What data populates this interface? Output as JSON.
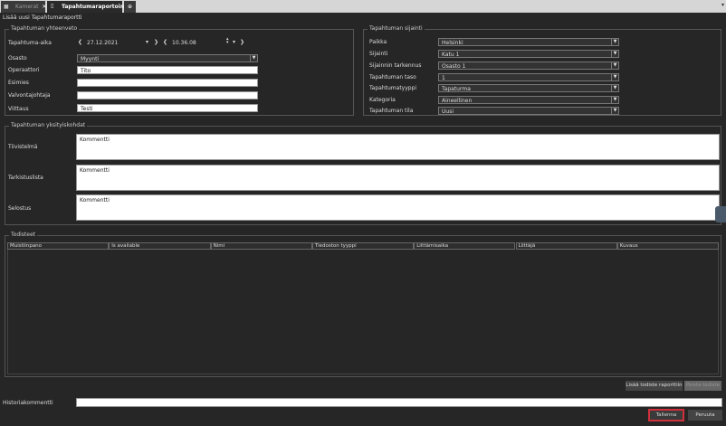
{
  "tabs": [
    {
      "label": "Kamerat",
      "icon": "camera-icon",
      "active": false
    },
    {
      "label": "Tapahtumaraportointi",
      "icon": "document-icon",
      "active": true
    }
  ],
  "page_title": "Lisää uusi Tapahtumaraportti",
  "summary": {
    "legend": "Tapahtuman yhteenveto",
    "time_label": "Tapahtuma-aika",
    "date": "27.12.2021",
    "time": "10.36.08",
    "department_label": "Osasto",
    "department": "Myynti",
    "fields": [
      {
        "label": "Operaattori",
        "value": "Tito"
      },
      {
        "label": "Esimies",
        "value": ""
      },
      {
        "label": "Valvontajohtaja",
        "value": ""
      },
      {
        "label": "Viittaus",
        "value": "Testi"
      }
    ]
  },
  "location": {
    "legend": "Tapahtuman sijainti",
    "fields": [
      {
        "label": "Paikka",
        "value": "Helsinki"
      },
      {
        "label": "Sijainti",
        "value": "Katu 1"
      },
      {
        "label": "Sijainnin tarkennus",
        "value": "Osasto 1"
      },
      {
        "label": "Tapahtuman taso",
        "value": "1"
      },
      {
        "label": "Tapahtumatyyppi",
        "value": "Tapaturma"
      },
      {
        "label": "Kategoria",
        "value": "Aineellinen"
      },
      {
        "label": "Tapahtuman tila",
        "value": "Uusi"
      }
    ]
  },
  "details": {
    "legend": "Tapahtuman yksityiskohdat",
    "fields": [
      {
        "label": "Tiivistelmä",
        "value": "Kommentti"
      },
      {
        "label": "Tarkistuslista",
        "value": "Kommentti"
      },
      {
        "label": "Selostus",
        "value": "Kommentti"
      }
    ]
  },
  "evidence": {
    "legend": "Todisteet",
    "columns": [
      "Muistiinpano",
      "Is available",
      "Nimi",
      "Tiedoston tyyppi",
      "Liittämisaika",
      "Liittäjä",
      "Kuvaus"
    ],
    "add_button": "Lisää todiste raporttiin",
    "remove_button": "Poista todiste"
  },
  "history": {
    "label": "Historiakommentti",
    "value": ""
  },
  "save_button": "Tallenna",
  "cancel_button": "Peruuta",
  "colors": {
    "save_highlight": "#d0303a",
    "background": "#262626"
  }
}
